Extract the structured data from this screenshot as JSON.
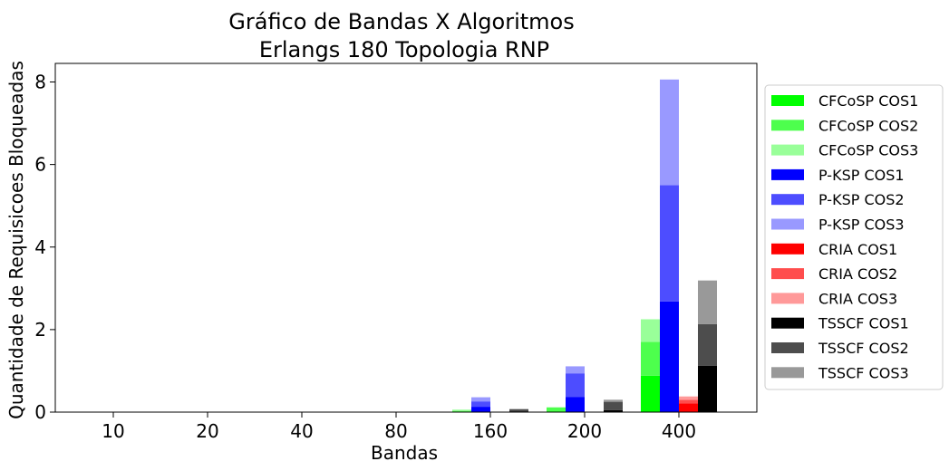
{
  "chart_data": {
    "type": "bar",
    "stacked": true,
    "title_line1": "Gráfico de Bandas X Algoritmos",
    "title_line2": "Erlangs 180 Topologia RNP",
    "xlabel": "Bandas",
    "ylabel": "Quantidade de Requisicoes Bloqueadas",
    "categories": [
      "10",
      "20",
      "40",
      "80",
      "160",
      "200",
      "400"
    ],
    "ylim": [
      0,
      8.45
    ],
    "yticks": [
      0,
      2,
      4,
      6,
      8
    ],
    "grid": false,
    "legend_position": "right-outside",
    "series": [
      {
        "name": "CFCoSP COS1",
        "group": "CFCoSP",
        "color": "#00ff00",
        "values": [
          0,
          0,
          0,
          0,
          0.0,
          0.02,
          0.88
        ]
      },
      {
        "name": "CFCoSP COS2",
        "group": "CFCoSP",
        "color": "#4dff4d",
        "values": [
          0,
          0,
          0,
          0,
          0.03,
          0.09,
          0.82
        ]
      },
      {
        "name": "CFCoSP COS3",
        "group": "CFCoSP",
        "color": "#99ff99",
        "values": [
          0,
          0,
          0,
          0,
          0.03,
          0.01,
          0.55
        ]
      },
      {
        "name": "P-KSP COS1",
        "group": "P-KSP",
        "color": "#0000ff",
        "values": [
          0,
          0,
          0,
          0,
          0.13,
          0.37,
          2.68
        ]
      },
      {
        "name": "P-KSP COS2",
        "group": "P-KSP",
        "color": "#4d4dff",
        "values": [
          0,
          0,
          0,
          0,
          0.13,
          0.57,
          2.82
        ]
      },
      {
        "name": "P-KSP COS3",
        "group": "P-KSP",
        "color": "#9999ff",
        "values": [
          0,
          0,
          0,
          0,
          0.1,
          0.17,
          2.56
        ]
      },
      {
        "name": "CRIA COS1",
        "group": "CRIA",
        "color": "#ff0000",
        "values": [
          0,
          0,
          0,
          0,
          0.0,
          0.0,
          0.21
        ]
      },
      {
        "name": "CRIA COS2",
        "group": "CRIA",
        "color": "#ff4d4d",
        "values": [
          0,
          0,
          0,
          0,
          0.0,
          0.0,
          0.09
        ]
      },
      {
        "name": "CRIA COS3",
        "group": "CRIA",
        "color": "#ff9999",
        "values": [
          0,
          0,
          0,
          0,
          0.0,
          0.0,
          0.08
        ]
      },
      {
        "name": "TSSCF COS1",
        "group": "TSSCF",
        "color": "#000000",
        "values": [
          0,
          0,
          0,
          0,
          0.02,
          0.05,
          1.12
        ]
      },
      {
        "name": "TSSCF COS2",
        "group": "TSSCF",
        "color": "#4d4d4d",
        "values": [
          0,
          0,
          0,
          0,
          0.05,
          0.2,
          1.01
        ]
      },
      {
        "name": "TSSCF COS3",
        "group": "TSSCF",
        "color": "#999999",
        "values": [
          0,
          0,
          0,
          0,
          0.01,
          0.05,
          1.06
        ]
      }
    ]
  }
}
